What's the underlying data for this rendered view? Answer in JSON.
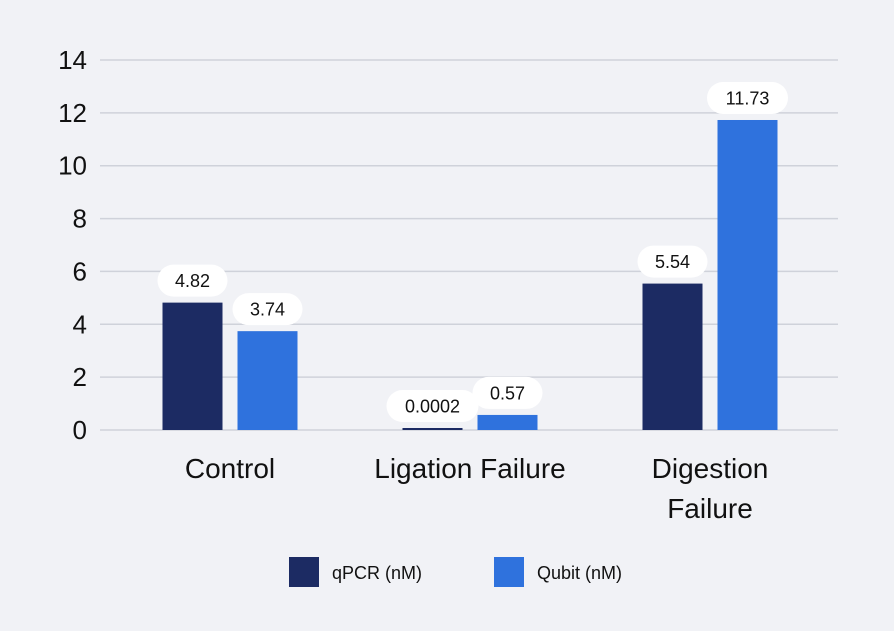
{
  "chart_data": {
    "type": "bar",
    "categories": [
      [
        "Control"
      ],
      [
        "Ligation Failure"
      ],
      [
        "Digestion",
        "Failure"
      ]
    ],
    "series": [
      {
        "name": "qPCR (nM)",
        "color": "#1c2b63",
        "values": [
          4.82,
          0.0002,
          5.54
        ],
        "labels": [
          "4.82",
          "0.0002",
          "5.54"
        ]
      },
      {
        "name": "Qubit (nM)",
        "color": "#2f72dd",
        "values": [
          3.74,
          0.57,
          11.73
        ],
        "labels": [
          "3.74",
          "0.57",
          "11.73"
        ]
      }
    ],
    "ylim": [
      0,
      14
    ],
    "yticks": [
      "0",
      "2",
      "4",
      "6",
      "8",
      "10",
      "12",
      "14"
    ],
    "grid": true,
    "legend": "bottom"
  }
}
